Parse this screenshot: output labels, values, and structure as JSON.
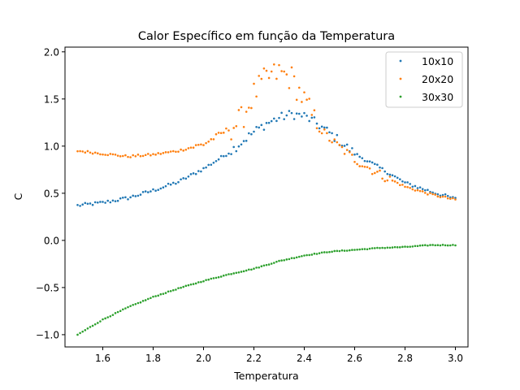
{
  "chart_data": {
    "type": "scatter",
    "title": "Calor Específico em função da Temperatura",
    "xlabel": "Temperatura",
    "ylabel": "C",
    "xlim": [
      1.45,
      3.05
    ],
    "ylim": [
      -1.13,
      2.05
    ],
    "xticks": [
      1.6,
      1.8,
      2.0,
      2.2,
      2.4,
      2.6,
      2.8,
      3.0
    ],
    "yticks": [
      -1.0,
      -0.5,
      0.0,
      0.5,
      1.0,
      1.5,
      2.0
    ],
    "xtick_labels": [
      "1.6",
      "1.8",
      "2.0",
      "2.2",
      "2.4",
      "2.6",
      "2.8",
      "3.0"
    ],
    "ytick_labels": [
      "−1.0",
      "−0.5",
      "0.0",
      "0.5",
      "1.0",
      "1.5",
      "2.0"
    ],
    "grid": false,
    "legend_position": "top-right",
    "x_range": [
      1.5,
      3.0
    ],
    "n_points": 151,
    "series": [
      {
        "name": "10x10",
        "color": "#1f77b4",
        "points": [
          [
            1.5,
            0.37
          ],
          [
            1.6,
            0.4
          ],
          [
            1.7,
            0.45
          ],
          [
            1.8,
            0.53
          ],
          [
            1.9,
            0.62
          ],
          [
            2.0,
            0.76
          ],
          [
            2.1,
            0.93
          ],
          [
            2.2,
            1.15
          ],
          [
            2.25,
            1.24
          ],
          [
            2.3,
            1.3
          ],
          [
            2.35,
            1.34
          ],
          [
            2.4,
            1.32
          ],
          [
            2.45,
            1.24
          ],
          [
            2.5,
            1.14
          ],
          [
            2.6,
            0.92
          ],
          [
            2.7,
            0.77
          ],
          [
            2.8,
            0.61
          ],
          [
            2.9,
            0.52
          ],
          [
            3.0,
            0.44
          ]
        ]
      },
      {
        "name": "20x20",
        "color": "#ff7f0e",
        "points": [
          [
            1.5,
            0.95
          ],
          [
            1.6,
            0.92
          ],
          [
            1.7,
            0.89
          ],
          [
            1.8,
            0.91
          ],
          [
            1.9,
            0.95
          ],
          [
            2.0,
            1.02
          ],
          [
            2.1,
            1.18
          ],
          [
            2.15,
            1.28
          ],
          [
            2.2,
            1.55
          ],
          [
            2.25,
            1.72
          ],
          [
            2.3,
            1.78
          ],
          [
            2.35,
            1.72
          ],
          [
            2.4,
            1.48
          ],
          [
            2.45,
            1.22
          ],
          [
            2.5,
            1.08
          ],
          [
            2.6,
            0.86
          ],
          [
            2.7,
            0.7
          ],
          [
            2.8,
            0.57
          ],
          [
            2.9,
            0.49
          ],
          [
            3.0,
            0.43
          ]
        ]
      },
      {
        "name": "30x30",
        "color": "#2ca02c",
        "points": [
          [
            1.5,
            -1.0
          ],
          [
            1.6,
            -0.84
          ],
          [
            1.7,
            -0.71
          ],
          [
            1.8,
            -0.6
          ],
          [
            1.9,
            -0.51
          ],
          [
            2.0,
            -0.43
          ],
          [
            2.1,
            -0.36
          ],
          [
            2.2,
            -0.3
          ],
          [
            2.3,
            -0.22
          ],
          [
            2.4,
            -0.16
          ],
          [
            2.5,
            -0.12
          ],
          [
            2.6,
            -0.1
          ],
          [
            2.7,
            -0.08
          ],
          [
            2.8,
            -0.07
          ],
          [
            2.9,
            -0.05
          ],
          [
            3.0,
            -0.05
          ]
        ]
      }
    ]
  }
}
